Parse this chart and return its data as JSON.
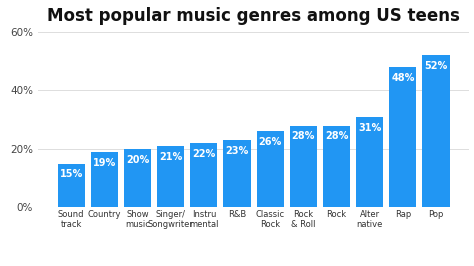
{
  "title": "Most popular music genres among US teens",
  "categories": [
    "Sound\ntrack",
    "Country",
    "Show\nmusic",
    "Singer/\nSongwriter",
    "Instru\nmental",
    "R&B",
    "Classic\nRock",
    "Rock\n& Roll",
    "Rock",
    "Alter\nnative",
    "Rap",
    "Pop"
  ],
  "values": [
    15,
    19,
    20,
    21,
    22,
    23,
    26,
    28,
    28,
    31,
    48,
    52
  ],
  "bar_color": "#2196F3",
  "label_color": "#ffffff",
  "title_color": "#111111",
  "background_color": "#ffffff",
  "ylim": [
    0,
    60
  ],
  "yticks": [
    0,
    20,
    40,
    60
  ],
  "ytick_labels": [
    "0%",
    "20%",
    "40%",
    "60%"
  ],
  "title_fontsize": 12,
  "label_fontsize": 7,
  "tick_fontsize": 7.5,
  "xtick_fontsize": 6.0,
  "bar_width": 0.82
}
